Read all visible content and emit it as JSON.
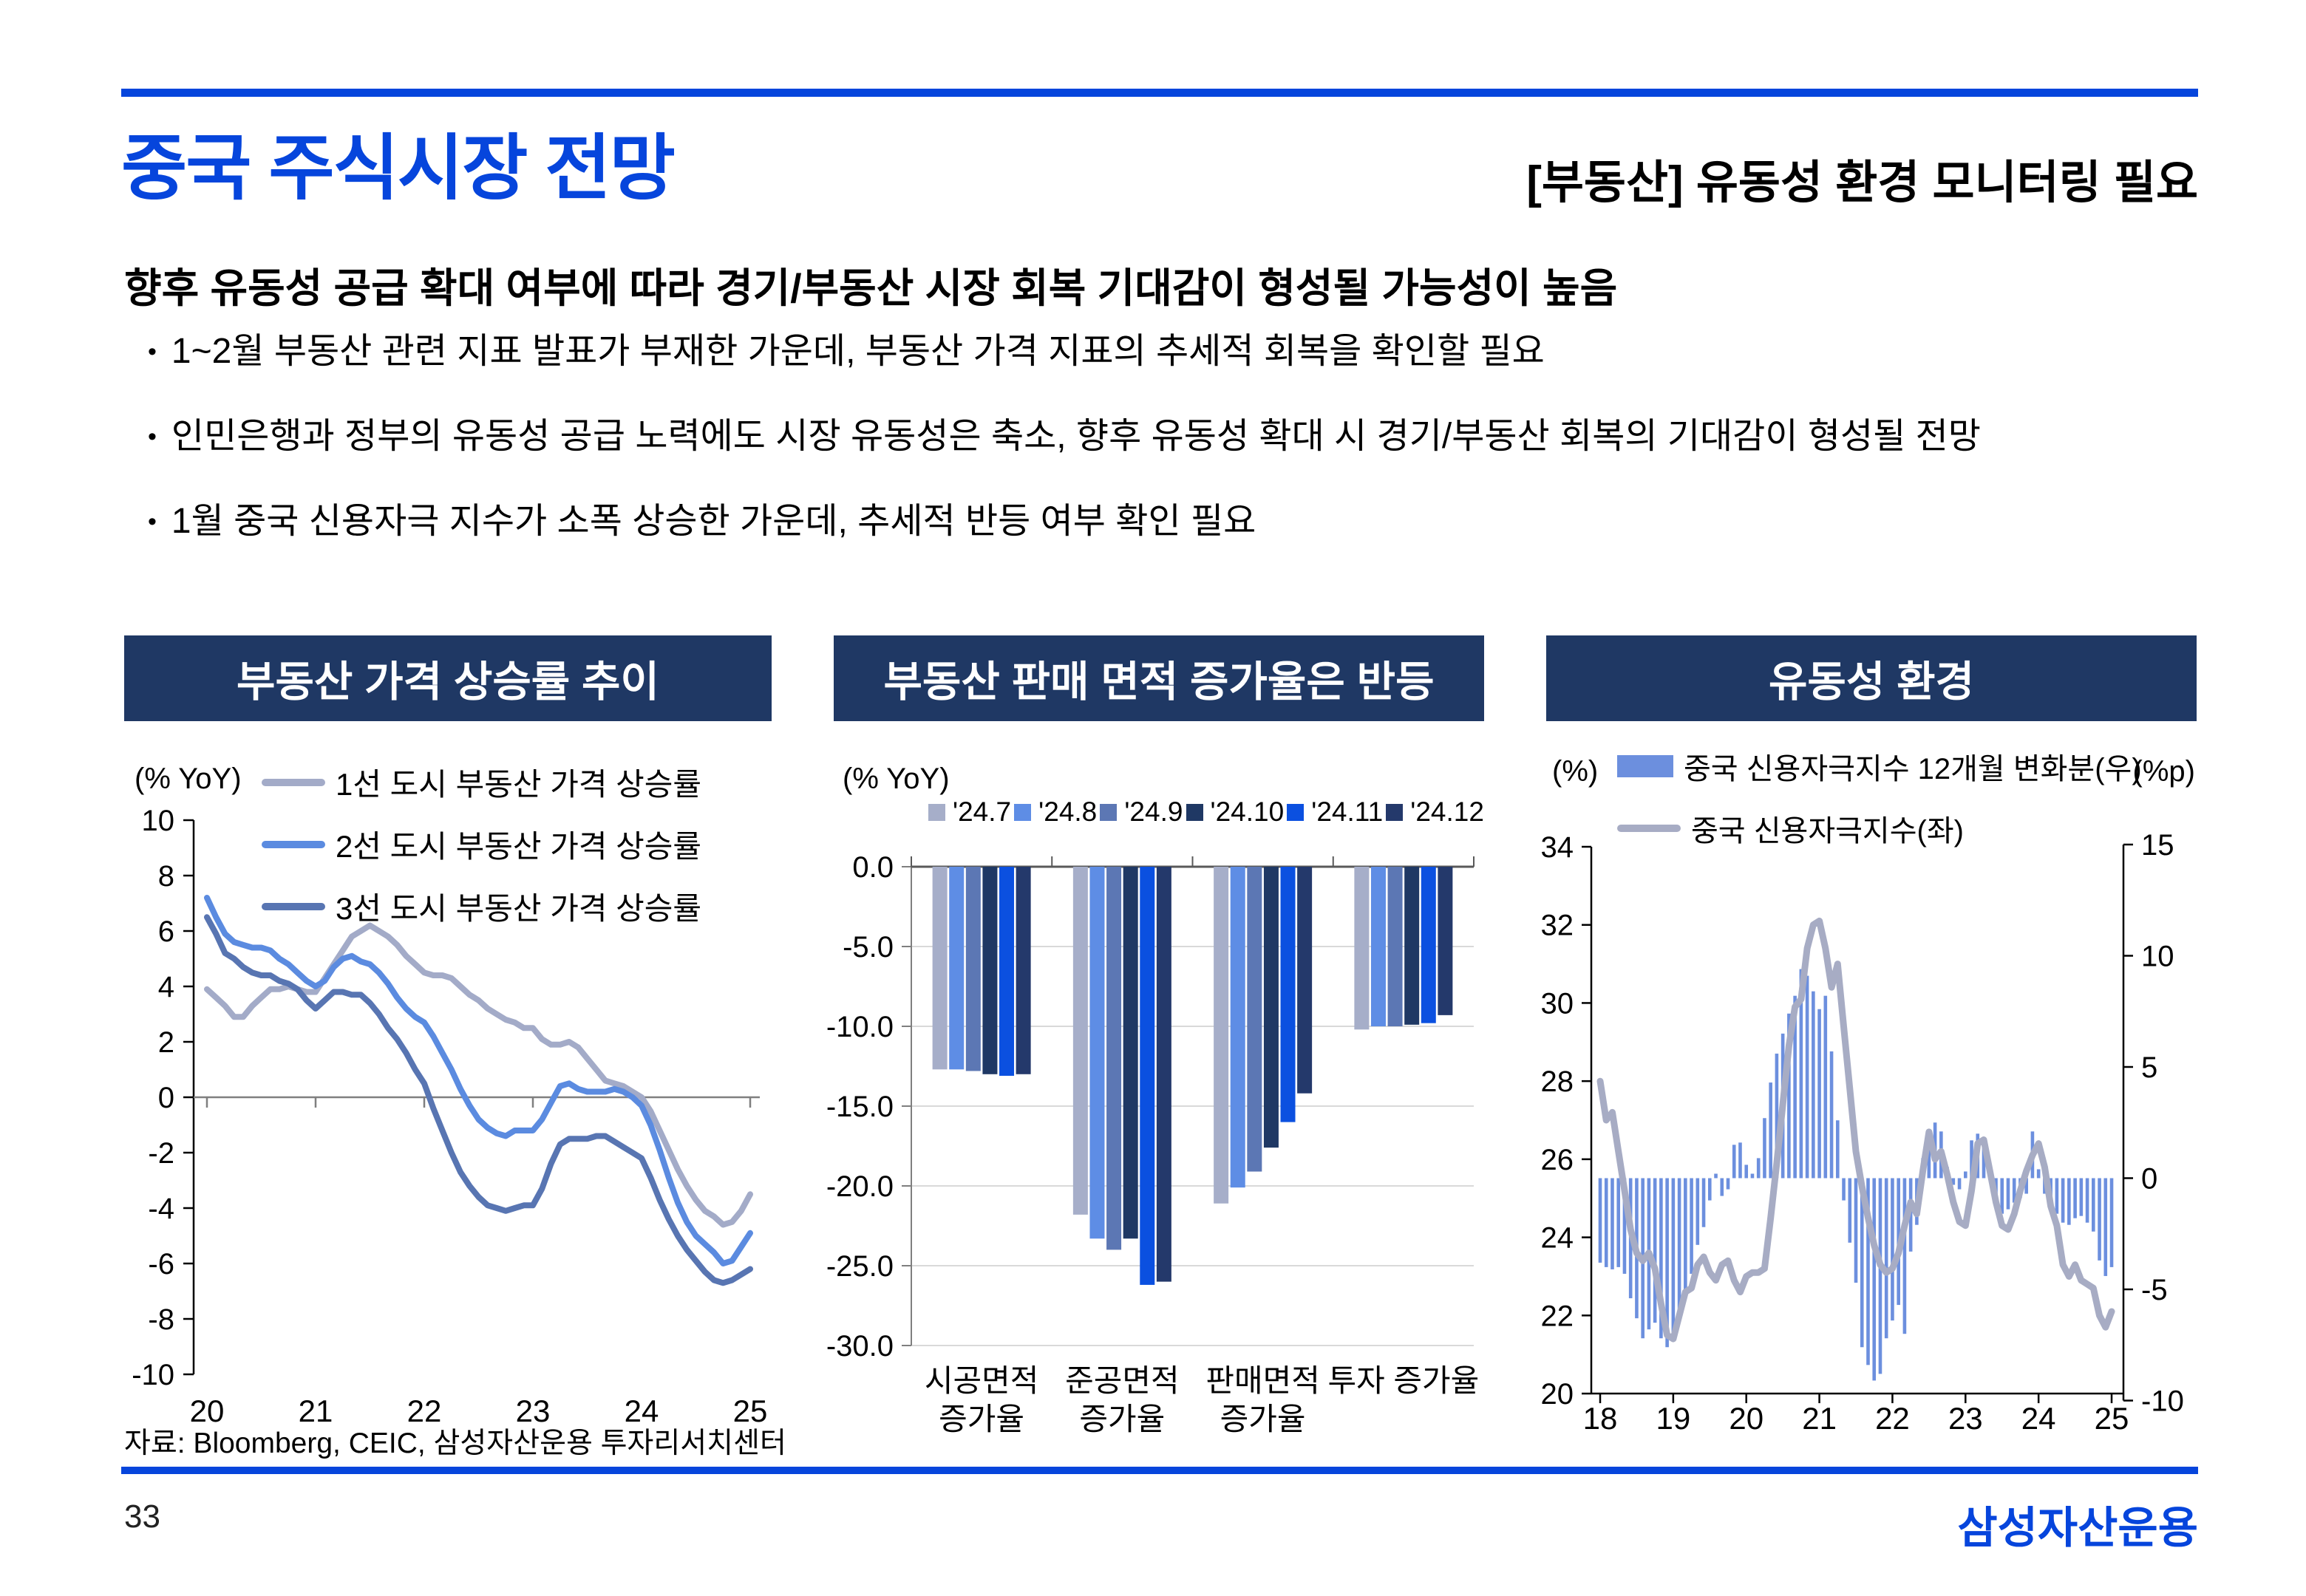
{
  "slide": {
    "title": "중국 주식시장 전망",
    "header_right": "[부동산] 유동성 환경 모니터링 필요",
    "lead": "향후 유동성 공급 확대 여부에 따라 경기/부동산 시장 회복 기대감이 형성될 가능성이 높음",
    "bullets": [
      "1~2월 부동산 관련 지표 발표가 부재한 가운데, 부동산 가격 지표의 추세적 회복을 확인할 필요",
      "인민은행과 정부의 유동성 공급 노력에도 시장 유동성은 축소, 향후 유동성 확대 시 경기/부동산 회복의 기대감이 형성될 전망",
      "1월 중국 신용자극 지수가 소폭 상승한 가운데, 추세적 반등 여부 확인 필요"
    ],
    "source": "자료: Bloomberg, CEIC, 삼성자산운용 투자리서치센터",
    "page_number": "33",
    "logo": "삼성자산운용",
    "colors": {
      "accent": "#0645DC",
      "panel_navy": "#1F3864",
      "grid": "#D9D9D9"
    }
  },
  "chart_data": [
    {
      "id": "price-growth",
      "type": "line",
      "panel_title": "부동산 가격 상승률 추이",
      "unit_label": "(% YoY)",
      "ylim": [
        -10,
        10
      ],
      "yticks": [
        10,
        8,
        6,
        4,
        2,
        0,
        -2,
        -4,
        -6,
        -8,
        -10
      ],
      "xticks": [
        20,
        21,
        22,
        23,
        24,
        25
      ],
      "x_start": 20,
      "points_per_year": 12,
      "series": [
        {
          "name": "1선 도시 부동산 가격 상승률",
          "color": "#A3ABC8",
          "values": [
            3.9,
            3.6,
            3.3,
            2.9,
            2.9,
            3.3,
            3.6,
            3.9,
            3.9,
            4.0,
            3.9,
            3.8,
            3.8,
            4.3,
            4.8,
            5.3,
            5.8,
            6.0,
            6.2,
            6.0,
            5.8,
            5.5,
            5.1,
            4.8,
            4.5,
            4.4,
            4.4,
            4.3,
            4.0,
            3.7,
            3.5,
            3.2,
            3.0,
            2.8,
            2.7,
            2.5,
            2.5,
            2.1,
            1.9,
            1.9,
            2.0,
            1.8,
            1.4,
            1.0,
            0.6,
            0.5,
            0.4,
            0.2,
            0.0,
            -0.5,
            -1.2,
            -1.9,
            -2.6,
            -3.2,
            -3.7,
            -4.1,
            -4.3,
            -4.6,
            -4.5,
            -4.1,
            -3.5
          ]
        },
        {
          "name": "2선 도시 부동산 가격 상승률",
          "color": "#5B8BE0",
          "values": [
            7.2,
            6.5,
            5.9,
            5.6,
            5.5,
            5.4,
            5.4,
            5.3,
            5.0,
            4.8,
            4.5,
            4.2,
            4.0,
            4.2,
            4.7,
            5.0,
            5.1,
            4.9,
            4.8,
            4.5,
            4.1,
            3.6,
            3.2,
            2.9,
            2.7,
            2.2,
            1.6,
            1.0,
            0.3,
            -0.3,
            -0.8,
            -1.1,
            -1.3,
            -1.4,
            -1.2,
            -1.2,
            -1.2,
            -0.8,
            -0.2,
            0.4,
            0.5,
            0.3,
            0.2,
            0.2,
            0.2,
            0.3,
            0.2,
            0.0,
            -0.3,
            -1.0,
            -1.9,
            -2.9,
            -3.8,
            -4.5,
            -5.0,
            -5.3,
            -5.6,
            -6.0,
            -5.9,
            -5.4,
            -4.9
          ]
        },
        {
          "name": "3선 도시 부동산 가격 상승률",
          "color": "#5875B2",
          "values": [
            6.5,
            5.9,
            5.2,
            5.0,
            4.7,
            4.5,
            4.4,
            4.4,
            4.2,
            4.1,
            3.9,
            3.5,
            3.2,
            3.5,
            3.8,
            3.8,
            3.7,
            3.7,
            3.4,
            3.0,
            2.5,
            2.1,
            1.6,
            1.0,
            0.5,
            -0.4,
            -1.2,
            -2.0,
            -2.7,
            -3.2,
            -3.6,
            -3.9,
            -4.0,
            -4.1,
            -4.0,
            -3.9,
            -3.9,
            -3.3,
            -2.4,
            -1.7,
            -1.5,
            -1.5,
            -1.5,
            -1.4,
            -1.4,
            -1.6,
            -1.8,
            -2.0,
            -2.2,
            -2.9,
            -3.7,
            -4.4,
            -5.0,
            -5.5,
            -5.9,
            -6.3,
            -6.6,
            -6.7,
            -6.6,
            -6.4,
            -6.2
          ]
        }
      ]
    },
    {
      "id": "sales-area",
      "type": "grouped-bar",
      "panel_title": "부동산 판매 면적 증가율은 반등",
      "unit_label": "(% YoY)",
      "ylim": [
        -30,
        0
      ],
      "ytick_labels": [
        "0.0",
        "-5.0",
        "-10.0",
        "-15.0",
        "-20.0",
        "-25.0",
        "-30.0"
      ],
      "categories": [
        [
          "시공면적",
          "증가율"
        ],
        [
          "준공면적",
          "증가율"
        ],
        [
          "판매면적",
          "증가율"
        ],
        [
          "투자 증가율"
        ]
      ],
      "series": [
        {
          "name": "'24.7",
          "color": "#A6AEC9",
          "values": [
            -12.7,
            -21.8,
            -21.1,
            -10.2
          ]
        },
        {
          "name": "'24.8",
          "color": "#5E8DE5",
          "values": [
            -12.7,
            -23.3,
            -20.1,
            -10.0
          ]
        },
        {
          "name": "'24.9",
          "color": "#5C77B4",
          "values": [
            -12.8,
            -24.0,
            -19.1,
            -10.0
          ]
        },
        {
          "name": "'24.10",
          "color": "#1F3864",
          "values": [
            -13.0,
            -23.3,
            -17.6,
            -9.9
          ]
        },
        {
          "name": "'24.11",
          "color": "#0B50E0",
          "values": [
            -13.1,
            -26.2,
            -16.0,
            -9.8
          ]
        },
        {
          "name": "'24.12",
          "color": "#24396B",
          "values": [
            -13.0,
            -26.0,
            -14.2,
            -9.3
          ]
        }
      ]
    },
    {
      "id": "liquidity",
      "type": "combo",
      "panel_title": "유동성 환경",
      "left_unit": "(%)",
      "right_unit": "(%p)",
      "left_ylim": [
        20,
        34
      ],
      "left_yticks": [
        34,
        32,
        30,
        28,
        26,
        24,
        22,
        20
      ],
      "right_ylim": [
        -10,
        15
      ],
      "right_yticks": [
        15,
        10,
        5,
        0,
        -5,
        -10
      ],
      "xticks": [
        18,
        19,
        20,
        21,
        22,
        23,
        24,
        25
      ],
      "x_start": 18,
      "points_per_year": 12,
      "bar_series": {
        "name": "중국 신용자극지수 12개월 변화분(우)",
        "color": "#6C8FDE",
        "axis": "right",
        "values": [
          -3.8,
          -4.0,
          -4.1,
          -4.0,
          -4.3,
          -5.4,
          -6.3,
          -7.2,
          -6.8,
          -6.5,
          -7.2,
          -7.6,
          -7.3,
          -6.4,
          -5.3,
          -4.3,
          -3.0,
          -2.2,
          -1.0,
          0.2,
          -0.8,
          -0.5,
          1.5,
          1.6,
          0.6,
          0.2,
          0.9,
          2.7,
          4.3,
          5.6,
          6.5,
          7.4,
          8.2,
          9.4,
          9.1,
          8.4,
          7.6,
          8.2,
          5.7,
          2.6,
          -1.0,
          -2.9,
          -4.7,
          -7.6,
          -8.4,
          -9.1,
          -8.8,
          -7.2,
          -6.4,
          -5.7,
          -7.0,
          -3.3,
          -2.1,
          0.9,
          1.9,
          2.5,
          2.1,
          0.5,
          -0.3,
          -0.5,
          0.3,
          1.7,
          2.0,
          1.6,
          0.5,
          -0.9,
          -1.6,
          -1.4,
          -1.1,
          -0.9,
          -0.7,
          2.1,
          0.4,
          -0.7,
          -1.2,
          -1.6,
          -2.0,
          -2.1,
          -1.8,
          -1.7,
          -2.0,
          -2.4,
          -3.7,
          -4.4,
          -4.0
        ]
      },
      "line_series": {
        "name": "중국 신용자극지수(좌)",
        "color": "#A7ACC4",
        "axis": "left",
        "values": [
          28.0,
          27.0,
          27.2,
          26.2,
          25.2,
          24.2,
          23.6,
          23.4,
          23.6,
          23.2,
          22.3,
          21.5,
          21.4,
          22.0,
          22.6,
          22.7,
          23.3,
          23.5,
          23.1,
          22.9,
          23.3,
          23.4,
          22.9,
          22.6,
          23.0,
          23.1,
          23.1,
          23.2,
          24.5,
          25.9,
          27.4,
          28.9,
          29.9,
          30.1,
          31.4,
          32.0,
          32.1,
          31.4,
          30.4,
          31.0,
          29.4,
          27.8,
          26.2,
          25.3,
          24.5,
          23.8,
          23.3,
          23.1,
          23.2,
          23.6,
          24.3,
          24.9,
          24.6,
          25.7,
          26.7,
          26.0,
          26.2,
          25.6,
          24.9,
          24.4,
          24.3,
          25.2,
          26.4,
          26.5,
          25.7,
          24.9,
          24.3,
          24.2,
          24.6,
          25.2,
          25.7,
          26.1,
          26.4,
          25.8,
          24.8,
          24.3,
          23.3,
          23.0,
          23.3,
          22.9,
          22.8,
          22.7,
          22.0,
          21.7,
          22.1
        ]
      }
    }
  ]
}
